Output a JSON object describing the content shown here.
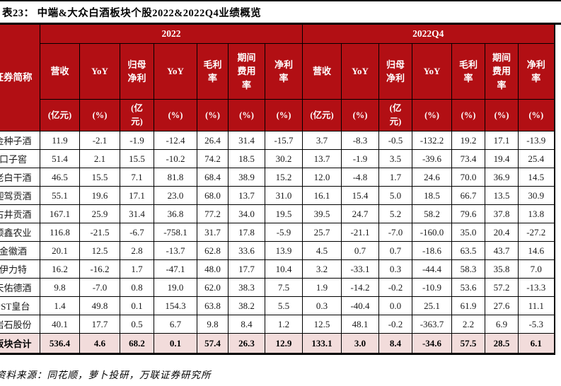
{
  "title": "表23： 中端&大众白酒板块个股2022&2022Q4业绩概览",
  "source": "资料来源：同花顺，萝卜投研，万联证券研究所",
  "colors": {
    "header_red": "#B20F14",
    "total_row_pink": "#F2DCDB",
    "border_black": "#000000"
  },
  "table": {
    "stub_header": "证券简称",
    "groups": [
      {
        "label": "2022"
      },
      {
        "label": "2022Q4"
      }
    ],
    "columns": [
      {
        "label": "营收",
        "unit": "(亿元)"
      },
      {
        "label": "YoY",
        "unit": "(%)"
      },
      {
        "label": "归母\n净利",
        "unit": "(亿\n元)"
      },
      {
        "label": "YoY",
        "unit": "(%)"
      },
      {
        "label": "毛利\n率",
        "unit": "(%)"
      },
      {
        "label": "期间\n费用\n率",
        "unit": "(%)"
      },
      {
        "label": "净利\n率",
        "unit": "(%)"
      }
    ],
    "rows": [
      {
        "name": "金种子酒",
        "y2022": [
          "11.9",
          "-2.1",
          "-1.9",
          "-12.4",
          "26.4",
          "31.4",
          "-15.7"
        ],
        "q4": [
          "3.7",
          "-8.3",
          "-0.5",
          "-132.2",
          "19.2",
          "17.1",
          "-13.9"
        ]
      },
      {
        "name": "口子窖",
        "y2022": [
          "51.4",
          "2.1",
          "15.5",
          "-10.2",
          "74.2",
          "18.5",
          "30.2"
        ],
        "q4": [
          "13.7",
          "-1.9",
          "3.5",
          "-39.6",
          "73.4",
          "19.4",
          "25.4"
        ]
      },
      {
        "name": "老白干酒",
        "y2022": [
          "46.5",
          "15.5",
          "7.1",
          "81.8",
          "68.4",
          "38.9",
          "15.2"
        ],
        "q4": [
          "12.0",
          "-4.8",
          "1.7",
          "24.6",
          "70.0",
          "36.9",
          "14.5"
        ]
      },
      {
        "name": "迎驾贡酒",
        "y2022": [
          "55.1",
          "19.6",
          "17.1",
          "23.0",
          "68.0",
          "13.7",
          "31.0"
        ],
        "q4": [
          "16.1",
          "15.4",
          "5.0",
          "18.5",
          "66.7",
          "13.5",
          "30.9"
        ]
      },
      {
        "name": "古井贡酒",
        "y2022": [
          "167.1",
          "25.9",
          "31.4",
          "36.8",
          "77.2",
          "34.0",
          "19.5"
        ],
        "q4": [
          "39.5",
          "24.7",
          "5.2",
          "58.2",
          "79.6",
          "37.8",
          "13.8"
        ]
      },
      {
        "name": "顺鑫农业",
        "y2022": [
          "116.8",
          "-21.5",
          "-6.7",
          "-758.1",
          "31.7",
          "17.8",
          "-5.9"
        ],
        "q4": [
          "25.7",
          "-21.1",
          "-7.0",
          "-160.0",
          "35.0",
          "20.4",
          "-27.2"
        ]
      },
      {
        "name": "金徽酒",
        "y2022": [
          "20.1",
          "12.5",
          "2.8",
          "-13.7",
          "62.8",
          "33.6",
          "13.9"
        ],
        "q4": [
          "4.5",
          "0.7",
          "0.7",
          "-18.6",
          "63.5",
          "43.7",
          "14.6"
        ]
      },
      {
        "name": "伊力特",
        "y2022": [
          "16.2",
          "-16.2",
          "1.7",
          "-47.1",
          "48.0",
          "17.7",
          "10.4"
        ],
        "q4": [
          "3.2",
          "-33.1",
          "0.3",
          "-44.4",
          "58.3",
          "35.8",
          "7.0"
        ]
      },
      {
        "name": "天佑德酒",
        "y2022": [
          "9.8",
          "-7.0",
          "0.8",
          "19.0",
          "62.0",
          "38.3",
          "7.5"
        ],
        "q4": [
          "1.9",
          "-14.2",
          "-0.2",
          "-10.9",
          "53.6",
          "57.2",
          "-13.3"
        ]
      },
      {
        "name": "*ST皇台",
        "y2022": [
          "1.4",
          "49.8",
          "0.1",
          "154.3",
          "63.8",
          "38.2",
          "5.5"
        ],
        "q4": [
          "0.3",
          "-40.4",
          "0.0",
          "25.1",
          "61.9",
          "27.6",
          "11.1"
        ]
      },
      {
        "name": "岩石股份",
        "y2022": [
          "40.1",
          "17.7",
          "0.5",
          "6.7",
          "9.8",
          "8.4",
          "1.2"
        ],
        "q4": [
          "12.5",
          "48.1",
          "-0.2",
          "-363.7",
          "2.2",
          "6.9",
          "-5.3"
        ]
      }
    ],
    "total": {
      "name": "板块合计",
      "y2022": [
        "536.4",
        "4.6",
        "68.2",
        "0.1",
        "57.4",
        "26.3",
        "12.9"
      ],
      "q4": [
        "133.1",
        "3.0",
        "8.4",
        "-34.6",
        "57.5",
        "28.5",
        "6.1"
      ]
    }
  }
}
